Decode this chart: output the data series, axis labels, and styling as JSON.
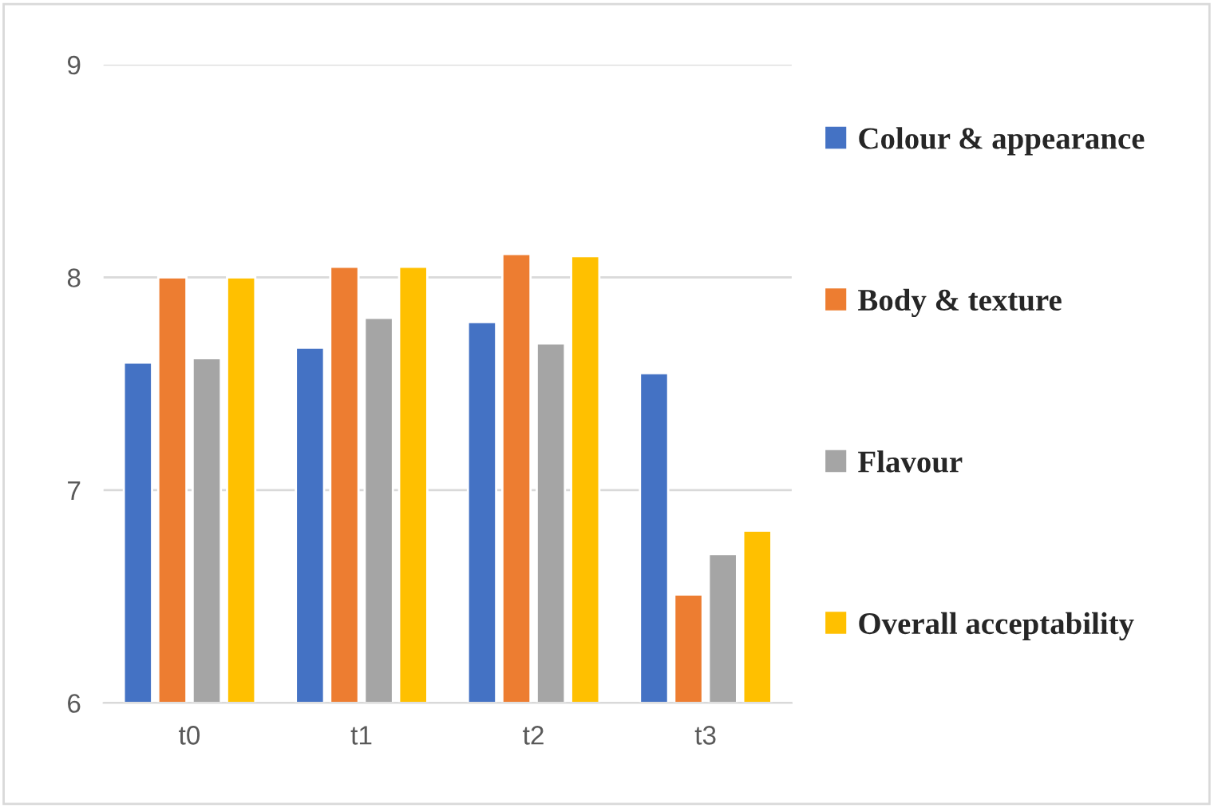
{
  "chart_data": {
    "type": "bar",
    "categories": [
      "t0",
      "t1",
      "t2",
      "t3"
    ],
    "series": [
      {
        "name": "Colour & appearance",
        "color": "#4472c4",
        "values": [
          7.6,
          7.67,
          7.79,
          7.55
        ]
      },
      {
        "name": "Body & texture",
        "color": "#ed7d31",
        "values": [
          8.0,
          8.05,
          8.11,
          6.51
        ]
      },
      {
        "name": "Flavour",
        "color": "#a5a5a5",
        "values": [
          7.62,
          7.81,
          7.69,
          6.7
        ]
      },
      {
        "name": "Overall acceptability",
        "color": "#ffc000",
        "values": [
          8.0,
          8.05,
          8.1,
          6.81
        ]
      }
    ],
    "ylim": [
      6,
      9
    ],
    "yticks": [
      6,
      7,
      8,
      9
    ],
    "grid": "y",
    "legend": "right"
  }
}
